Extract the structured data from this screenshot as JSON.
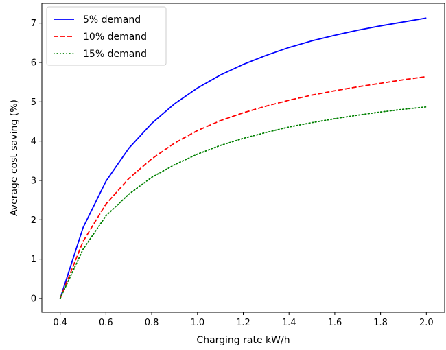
{
  "chart_data": {
    "type": "line",
    "title": "",
    "xlabel": "Charging rate kW/h",
    "ylabel": "Average cost saving (%)",
    "xlim": [
      0.32,
      2.08
    ],
    "ylim": [
      -0.35,
      7.5
    ],
    "xticks": [
      0.4,
      0.6,
      0.8,
      1.0,
      1.2,
      1.4,
      1.6,
      1.8,
      2.0
    ],
    "xtick_labels": [
      "0.4",
      "0.6",
      "0.8",
      "1.0",
      "1.2",
      "1.4",
      "1.6",
      "1.8",
      "2.0"
    ],
    "yticks": [
      0,
      1,
      2,
      3,
      4,
      5,
      6,
      7
    ],
    "ytick_labels": [
      "0",
      "1",
      "2",
      "3",
      "4",
      "5",
      "6",
      "7"
    ],
    "grid": false,
    "legend_position": "top-left",
    "x": [
      0.4,
      0.5,
      0.6,
      0.7,
      0.8,
      0.9,
      1.0,
      1.1,
      1.2,
      1.3,
      1.4,
      1.5,
      1.6,
      1.7,
      1.8,
      1.9,
      2.0
    ],
    "series": [
      {
        "name": "5% demand",
        "color": "#0000ff",
        "style": "solid",
        "values": [
          0.0,
          1.8,
          2.98,
          3.82,
          4.45,
          4.95,
          5.35,
          5.68,
          5.95,
          6.18,
          6.38,
          6.55,
          6.69,
          6.82,
          6.93,
          7.03,
          7.13
        ]
      },
      {
        "name": "10% demand",
        "color": "#ff0000",
        "style": "dashed",
        "values": [
          0.0,
          1.45,
          2.4,
          3.05,
          3.55,
          3.95,
          4.27,
          4.52,
          4.72,
          4.89,
          5.04,
          5.17,
          5.28,
          5.38,
          5.47,
          5.56,
          5.64
        ]
      },
      {
        "name": "15% demand",
        "color": "#008000",
        "style": "dotted",
        "values": [
          0.0,
          1.25,
          2.1,
          2.65,
          3.08,
          3.4,
          3.67,
          3.89,
          4.07,
          4.22,
          4.36,
          4.47,
          4.57,
          4.66,
          4.74,
          4.81,
          4.87
        ]
      }
    ]
  }
}
